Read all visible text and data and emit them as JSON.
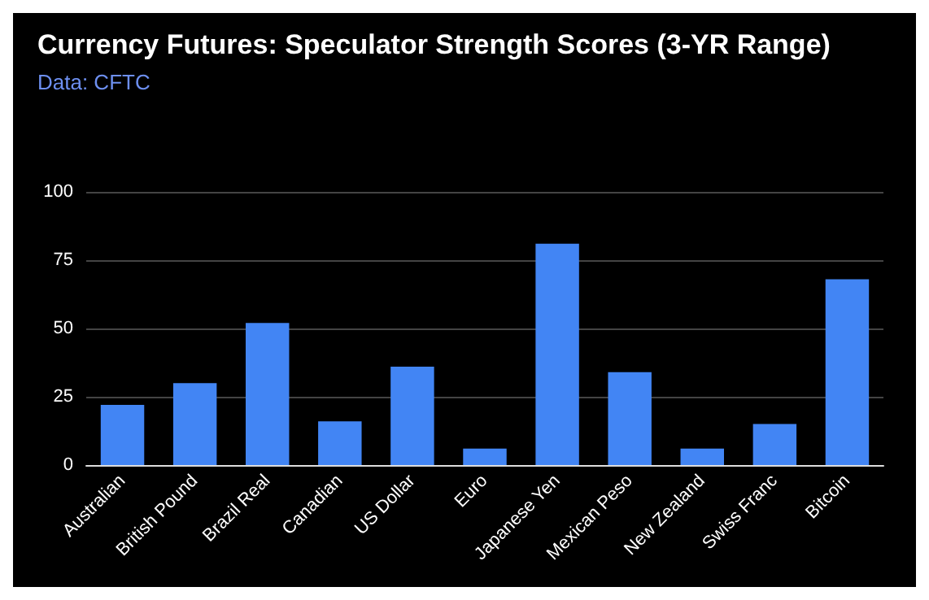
{
  "chart_data": {
    "type": "bar",
    "title": "Currency Futures: Speculator Strength Scores (3-YR Range)",
    "subtitle": "Data: CFTC",
    "categories": [
      "Australian",
      "British Pound",
      "Brazil Real",
      "Canadian",
      "US Dollar",
      "Euro",
      "Japanese Yen",
      "Mexican Peso",
      "New Zealand",
      "Swiss Franc",
      "Bitcoin"
    ],
    "values": [
      22,
      30,
      52,
      16,
      36,
      6,
      81,
      34,
      6,
      15,
      68
    ],
    "color": "#4285f4",
    "ylim": [
      0,
      100
    ],
    "yticks": [
      0,
      25,
      50,
      75,
      100
    ],
    "grid": "y"
  }
}
